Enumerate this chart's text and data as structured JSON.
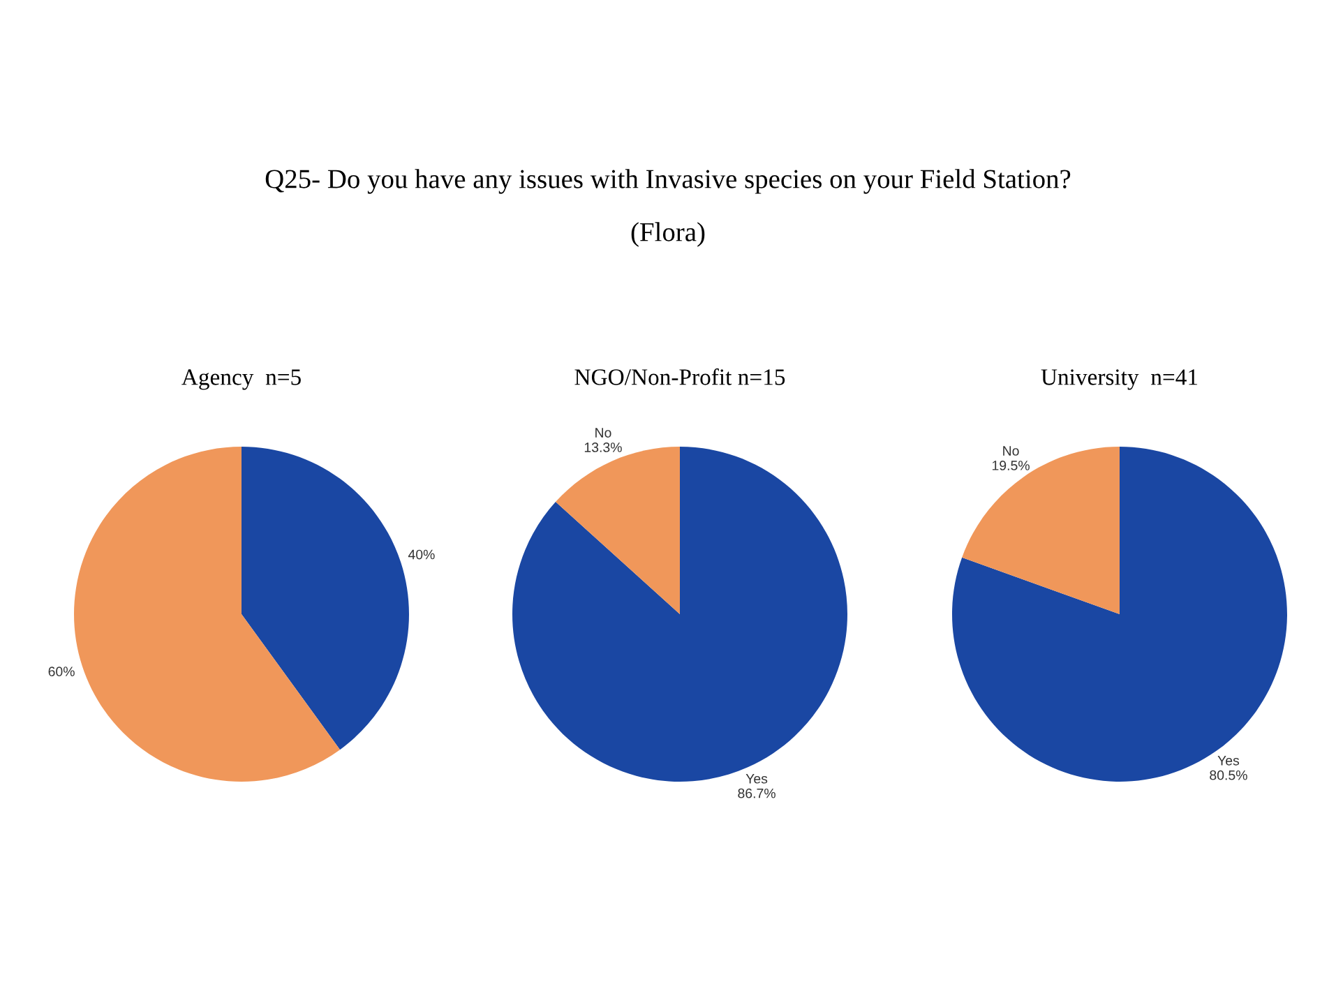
{
  "chart_data": [
    {
      "type": "other",
      "title": "Q25- Do you have any issues with Invasive species on your Field Station?",
      "subtitle": "(Flora)"
    },
    {
      "type": "pie",
      "title": "Agency  n=5",
      "categories": [
        null,
        null
      ],
      "values": [
        40,
        60
      ],
      "colors": [
        "#1a47a3",
        "#f0975a"
      ],
      "value_labels": [
        "40%",
        "60%"
      ]
    },
    {
      "type": "pie",
      "title": "NGO/Non-Profit n=15",
      "categories": [
        "Yes",
        "No"
      ],
      "values": [
        86.7,
        13.3
      ],
      "colors": [
        "#1a47a3",
        "#f0975a"
      ],
      "value_labels": [
        "86.7%",
        "13.3%"
      ]
    },
    {
      "type": "pie",
      "title": "University  n=41",
      "categories": [
        "Yes",
        "No"
      ],
      "values": [
        80.5,
        19.5
      ],
      "colors": [
        "#1a47a3",
        "#f0975a"
      ],
      "value_labels": [
        "80.5%",
        "19.5%"
      ]
    }
  ]
}
